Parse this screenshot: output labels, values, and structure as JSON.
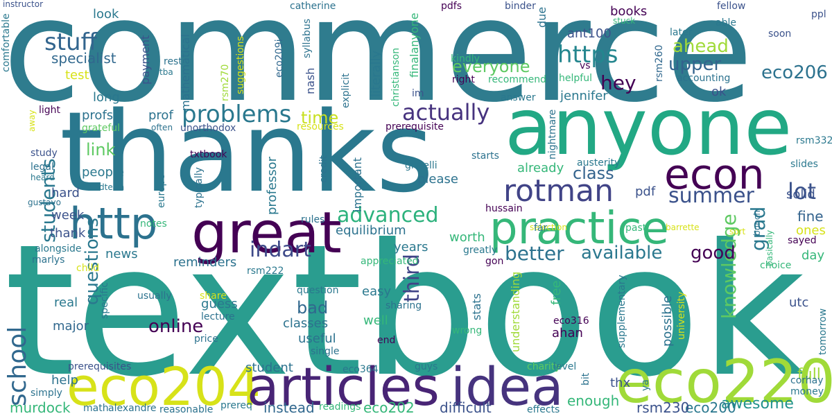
{
  "words": {
    "textbook": {
      "text": "textbook",
      "color": "#2a9d8f"
    },
    "commerce": {
      "text": "commerce",
      "color": "#2f7c8e"
    },
    "thanks": {
      "text": "thanks",
      "color": "#2a788e"
    },
    "anyone": {
      "text": "anyone",
      "color": "#22a884"
    },
    "eco220": {
      "text": "eco220",
      "color": "#a0da39"
    },
    "eco204": {
      "text": "eco204",
      "color": "#d7e219"
    },
    "articles": {
      "text": "articles",
      "color": "#482475"
    },
    "idea": {
      "text": "idea",
      "color": "#46337e"
    },
    "great": {
      "text": "great",
      "color": "#440154"
    },
    "practice": {
      "text": "practice",
      "color": "#35b779"
    },
    "http": {
      "text": "http",
      "color": "#2c728e"
    },
    "econ": {
      "text": "econ",
      "color": "#440154"
    },
    "rotman": {
      "text": "rotman",
      "color": "#414487"
    },
    "school": {
      "text": "school",
      "color": "#31688e"
    },
    "students": {
      "text": "students",
      "color": "#2a788e"
    },
    "problems": {
      "text": "problems",
      "color": "#29788e"
    },
    "stuff": {
      "text": "stuff",
      "color": "#32658e"
    },
    "https": {
      "text": "https",
      "color": "#24868e"
    },
    "actually": {
      "text": "actually",
      "color": "#46327e"
    },
    "summer": {
      "text": "summer",
      "color": "#3b528b"
    },
    "advanced": {
      "text": "advanced",
      "color": "#2db27d"
    },
    "indart": {
      "text": "indart",
      "color": "#3e4a89"
    },
    "third": {
      "text": "third",
      "color": "#414487"
    },
    "better": {
      "text": "better",
      "color": "#2c728e"
    },
    "available": {
      "text": "available",
      "color": "#2a788e"
    },
    "good": {
      "text": "good",
      "color": "#440154"
    },
    "grad": {
      "text": "grad",
      "color": "#2a788e"
    },
    "lot": {
      "text": "lot",
      "color": "#3b528b"
    },
    "knowledge": {
      "text": "knowledge",
      "color": "#5ec962"
    },
    "questions": {
      "text": "questions",
      "color": "#2a788e"
    },
    "hey": {
      "text": "hey",
      "color": "#440154"
    },
    "ahead": {
      "text": "ahead",
      "color": "#a0da39"
    },
    "eco206": {
      "text": "eco206",
      "color": "#2c728e"
    },
    "upper": {
      "text": "upper",
      "color": "#33638d"
    },
    "everyone": {
      "text": "everyone",
      "color": "#5ec962"
    },
    "class": {
      "text": "class",
      "color": "#33638d"
    },
    "online": {
      "text": "online",
      "color": "#440154"
    },
    "bad": {
      "text": "bad",
      "color": "#31688e"
    },
    "time": {
      "text": "time",
      "color": "#c8e020"
    },
    "link": {
      "text": "link",
      "color": "#5ec962"
    },
    "specialist": {
      "text": "specialist",
      "color": "#31688e"
    },
    "look": {
      "text": "look",
      "color": "#2a788e"
    },
    "murdock": {
      "text": "murdock",
      "color": "#35b779"
    },
    "instead": {
      "text": "instead",
      "color": "#31688e"
    },
    "difficult": {
      "text": "difficult",
      "color": "#3b528b"
    },
    "eco202": {
      "text": "eco202",
      "color": "#35b779"
    },
    "rsm230": {
      "text": "rsm230",
      "color": "#3b528b"
    },
    "eco200": {
      "text": "eco200",
      "color": "#2a788e"
    },
    "awesome": {
      "text": "awesome",
      "color": "#21918c"
    },
    "enough": {
      "text": "enough",
      "color": "#35b779"
    },
    "full": {
      "text": "full",
      "color": "#a0da39"
    },
    "solid": {
      "text": "solid",
      "color": "#3b528b"
    },
    "fine": {
      "text": "fine",
      "color": "#33638d"
    },
    "ones": {
      "text": "ones",
      "color": "#d7e219"
    },
    "day": {
      "text": "day",
      "color": "#35b779"
    },
    "utc": {
      "text": "utc",
      "color": "#3b528b"
    },
    "possible": {
      "text": "possible",
      "color": "#2c728e"
    },
    "jennifer": {
      "text": "jennifer",
      "color": "#2a788e"
    },
    "ok": {
      "text": "ok",
      "color": "#3b528b"
    },
    "pdf": {
      "text": "pdf",
      "color": "#3b528b"
    },
    "equilibrium": {
      "text": "equilibrium",
      "color": "#2c728e"
    },
    "worth": {
      "text": "worth",
      "color": "#35b779"
    },
    "years": {
      "text": "years",
      "color": "#2a788e"
    },
    "reminders": {
      "text": "reminders",
      "color": "#2c728e"
    },
    "news": {
      "text": "news",
      "color": "#2a788e"
    },
    "real": {
      "text": "real",
      "color": "#2a788e"
    },
    "major": {
      "text": "major",
      "color": "#31688e"
    },
    "guess": {
      "text": "guess",
      "color": "#2a788e"
    },
    "classes": {
      "text": "classes",
      "color": "#2c728e"
    },
    "useful": {
      "text": "useful",
      "color": "#2c728e"
    },
    "well": {
      "text": "well",
      "color": "#35b779"
    },
    "easy": {
      "text": "easy",
      "color": "#2a788e"
    },
    "professor": {
      "text": "professor",
      "color": "#2a788e"
    },
    "important": {
      "text": "important",
      "color": "#2c728e"
    },
    "please": {
      "text": "please",
      "color": "#2c728e"
    },
    "already": {
      "text": "already",
      "color": "#35b779"
    },
    "understanding": {
      "text": "understanding",
      "color": "#a0da39"
    },
    "free": {
      "text": "free",
      "color": "#35b779"
    },
    "ahan": {
      "text": "ahan",
      "color": "#440154"
    },
    "stats": {
      "text": "stats",
      "color": "#2c728e"
    },
    "thx": {
      "text": "thx",
      "color": "#3b528b"
    },
    "help": {
      "text": "help",
      "color": "#2c728e"
    },
    "student": {
      "text": "student",
      "color": "#2c728e"
    },
    "hard": {
      "text": "hard",
      "color": "#3b528b"
    },
    "people": {
      "text": "people",
      "color": "#2a788e"
    },
    "week": {
      "text": "week",
      "color": "#3b528b"
    },
    "thank": {
      "text": "thank",
      "color": "#3b528b"
    },
    "prof": {
      "text": "prof",
      "color": "#2c728e"
    },
    "profs": {
      "text": "profs",
      "color": "#2c728e"
    },
    "long": {
      "text": "long",
      "color": "#2a788e"
    },
    "test": {
      "text": "test",
      "color": "#d7e219"
    },
    "payment": {
      "text": "payment",
      "color": "#3b528b"
    },
    "rest": {
      "text": "rest",
      "color": "#2c728e"
    },
    "mathematical": {
      "text": "mathematical",
      "color": "#2c728e"
    },
    "books": {
      "text": "books",
      "color": "#440154"
    },
    "ant100": {
      "text": "ant100",
      "color": "#3b528b"
    },
    "due": {
      "text": "due",
      "color": "#2c728e"
    },
    "literally": {
      "text": "literally",
      "color": "#2a788e"
    },
    "finalanyone": {
      "text": "finalanyone",
      "color": "#35b779"
    },
    "nash": {
      "text": "nash",
      "color": "#3b528b"
    },
    "syllabus": {
      "text": "syllabus",
      "color": "#2c728e"
    },
    "eco209i": {
      "text": "eco209i",
      "color": "#31688e"
    },
    "rsm270": {
      "text": "rsm270",
      "color": "#a0da39"
    },
    "suggestions": {
      "text": "suggestions",
      "color": "#d7e219"
    },
    "catherine": {
      "text": "catherine",
      "color": "#2c728e"
    },
    "pdfs": {
      "text": "pdfs",
      "color": "#440154"
    },
    "binder": {
      "text": "binder",
      "color": "#3b528b"
    },
    "fellow": {
      "text": "fellow",
      "color": "#3b528b"
    },
    "ppl": {
      "text": "ppl",
      "color": "#3b528b"
    },
    "able": {
      "text": "able",
      "color": "#2a788e"
    },
    "soon": {
      "text": "soon",
      "color": "#3b528b"
    },
    "later": {
      "text": "later",
      "color": "#2a788e"
    },
    "stuck": {
      "text": "stuck",
      "color": "#35b779"
    },
    "kindly": {
      "text": "kindly",
      "color": "#35b779"
    },
    "vs": {
      "text": "vs",
      "color": "#440154"
    },
    "helpful": {
      "text": "helpful",
      "color": "#35b779"
    },
    "rsm260": {
      "text": "rsm260",
      "color": "#31688e"
    },
    "accounting": {
      "text": "accounting",
      "color": "#2c728e"
    },
    "recommend": {
      "text": "recommend",
      "color": "#35b779"
    },
    "right": {
      "text": "right",
      "color": "#440154"
    },
    "im": {
      "text": "im",
      "color": "#3b528b"
    },
    "answer": {
      "text": "answer",
      "color": "#2a788e"
    },
    "christianson": {
      "text": "christianson",
      "color": "#35b779"
    },
    "explicit": {
      "text": "explicit",
      "color": "#2c728e"
    },
    "prerequisite": {
      "text": "prerequisite",
      "color": "#440154"
    },
    "resources": {
      "text": "resources",
      "color": "#d7e219"
    },
    "unorthodox": {
      "text": "unorthodox",
      "color": "#3b528b"
    },
    "often": {
      "text": "often",
      "color": "#2c728e"
    },
    "grateful": {
      "text": "grateful",
      "color": "#5ec962"
    },
    "light": {
      "text": "light",
      "color": "#440154"
    },
    "comfortable": {
      "text": "comfortable",
      "color": "#2a788e"
    },
    "tba": {
      "text": "tba",
      "color": "#2a788e"
    },
    "instructor": {
      "text": "instructor",
      "color": "#3b528b"
    },
    "away": {
      "text": "away",
      "color": "#d7e219"
    },
    "study": {
      "text": "study",
      "color": "#3b528b"
    },
    "legal": {
      "text": "legal",
      "color": "#2c728e"
    },
    "heard": {
      "text": "heard",
      "color": "#2a788e"
    },
    "midterm": {
      "text": "midterm",
      "color": "#2a788e"
    },
    "gustavo": {
      "text": "gustavo",
      "color": "#2c728e"
    },
    "txtbook": {
      "text": "txtbook",
      "color": "#440154"
    },
    "europe": {
      "text": "europe",
      "color": "#2a788e"
    },
    "typically": {
      "text": "typically",
      "color": "#2c728e"
    },
    "notes": {
      "text": "notes",
      "color": "#35b779"
    },
    "credit": {
      "text": "credit",
      "color": "#2c728e"
    },
    "rules": {
      "text": "rules",
      "color": "#2c728e"
    },
    "ghaelli": {
      "text": "ghaelli",
      "color": "#2a788e"
    },
    "starts": {
      "text": "starts",
      "color": "#2c728e"
    },
    "nightmare": {
      "text": "nightmare",
      "color": "#2c728e"
    },
    "austerity": {
      "text": "austerity",
      "color": "#2a788e"
    },
    "rsm332": {
      "text": "rsm332",
      "color": "#2a788e"
    },
    "slides": {
      "text": "slides",
      "color": "#2a788e"
    },
    "hussain": {
      "text": "hussain",
      "color": "#440154"
    },
    "selection": {
      "text": "selection",
      "color": "#d7e219"
    },
    "barrette": {
      "text": "barrette",
      "color": "#d7e219"
    },
    "sort": {
      "text": "sort",
      "color": "#d7e219"
    },
    "far": {
      "text": "far",
      "color": "#2a788e"
    },
    "past": {
      "text": "past",
      "color": "#35b779"
    },
    "bunch": {
      "text": "bunch",
      "color": "#2c728e"
    },
    "basically": {
      "text": "basically",
      "color": "#35b779"
    },
    "sayed": {
      "text": "sayed",
      "color": "#440154"
    },
    "choice": {
      "text": "choice",
      "color": "#35b779"
    },
    "greatly": {
      "text": "greatly",
      "color": "#2a788e"
    },
    "gon": {
      "text": "gon",
      "color": "#440154"
    },
    "alongside": {
      "text": "alongside",
      "color": "#2a788e"
    },
    "marlys": {
      "text": "marlys",
      "color": "#2c728e"
    },
    "rsm222": {
      "text": "rsm222",
      "color": "#2a788e"
    },
    "appreciated": {
      "text": "appreciated",
      "color": "#35b779"
    },
    "child": {
      "text": "child",
      "color": "#d7e219"
    },
    "specific": {
      "text": "specific",
      "color": "#2a788e"
    },
    "share": {
      "text": "share",
      "color": "#d7e219"
    },
    "usually": {
      "text": "usually",
      "color": "#2c728e"
    },
    "lecture": {
      "text": "lecture",
      "color": "#2c728e"
    },
    "question": {
      "text": "question",
      "color": "#2a788e"
    },
    "sharing": {
      "text": "sharing",
      "color": "#2c728e"
    },
    "wrong": {
      "text": "wrong",
      "color": "#35b779"
    },
    "eco316": {
      "text": "eco316",
      "color": "#440154"
    },
    "supplementary": {
      "text": "supplementary",
      "color": "#2a788e"
    },
    "university": {
      "text": "university",
      "color": "#d7e219"
    },
    "tomorrow": {
      "text": "tomorrow",
      "color": "#2a788e"
    },
    "price": {
      "text": "price",
      "color": "#2c728e"
    },
    "single": {
      "text": "single",
      "color": "#2c728e"
    },
    "end": {
      "text": "end",
      "color": "#440154"
    },
    "prerequisites": {
      "text": "prerequisites",
      "color": "#3b528b"
    },
    "eco364": {
      "text": "eco364",
      "color": "#2a788e"
    },
    "guys": {
      "text": "guys",
      "color": "#2a788e"
    },
    "charity": {
      "text": "charity",
      "color": "#5ec962"
    },
    "level": {
      "text": "level",
      "color": "#2a788e"
    },
    "bit": {
      "text": "bit",
      "color": "#2c728e"
    },
    "ya": {
      "text": "ya",
      "color": "#2a788e"
    },
    "corhay": {
      "text": "corhay",
      "color": "#2c728e"
    },
    "money": {
      "text": "money",
      "color": "#2a788e"
    },
    "simply": {
      "text": "simply",
      "color": "#2c728e"
    },
    "math": {
      "text": "math",
      "color": "#2c728e"
    },
    "alexandre": {
      "text": "alexandre",
      "color": "#2c728e"
    },
    "reasonable": {
      "text": "reasonable",
      "color": "#2c728e"
    },
    "prereq": {
      "text": "prereq",
      "color": "#2a788e"
    },
    "readings": {
      "text": "readings",
      "color": "#35b779"
    },
    "effects": {
      "text": "effects",
      "color": "#2a788e"
    }
  }
}
